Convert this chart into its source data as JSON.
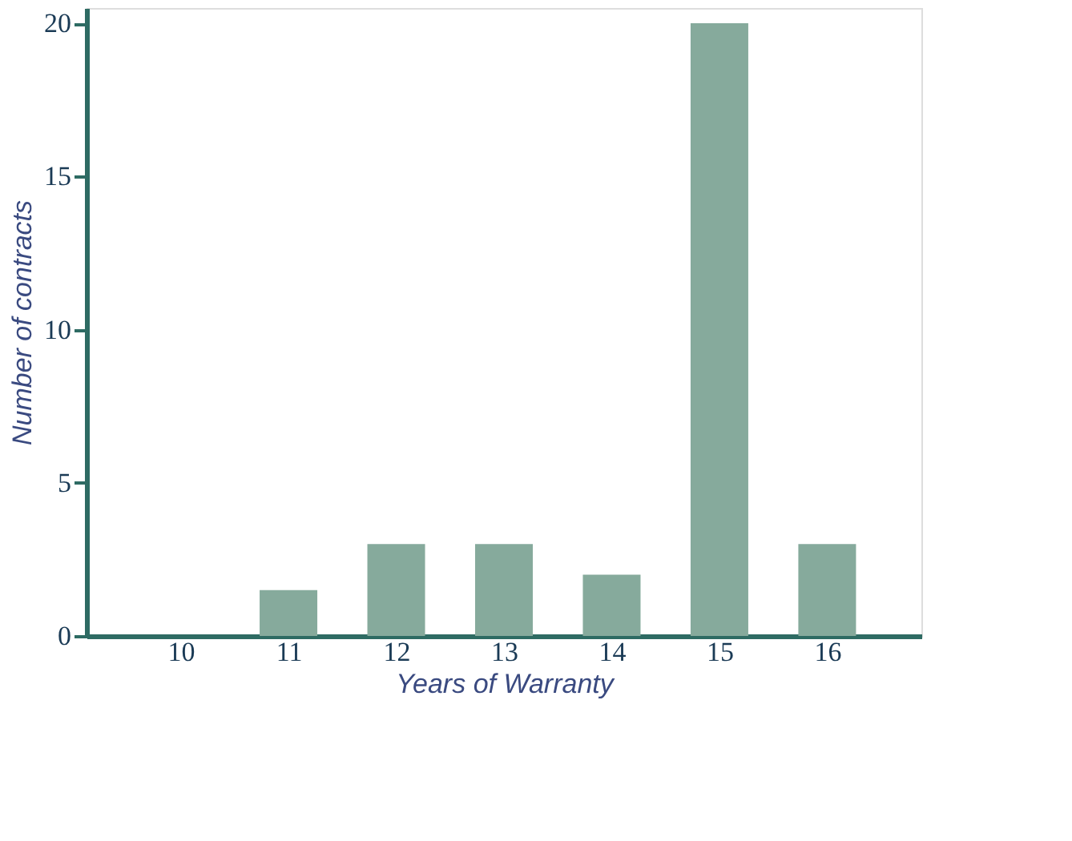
{
  "chart_data": {
    "type": "bar",
    "xlabel": "Years of Warranty",
    "ylabel": "Number of contracts",
    "categories": [
      "10",
      "11",
      "12",
      "13",
      "14",
      "15",
      "16"
    ],
    "values": [
      0,
      1.5,
      3,
      3,
      2,
      20,
      3
    ],
    "color": "#86aa9c",
    "ylim": [
      0,
      20.5
    ],
    "yticks": [
      0,
      5,
      10,
      15,
      20
    ],
    "grid": false
  }
}
